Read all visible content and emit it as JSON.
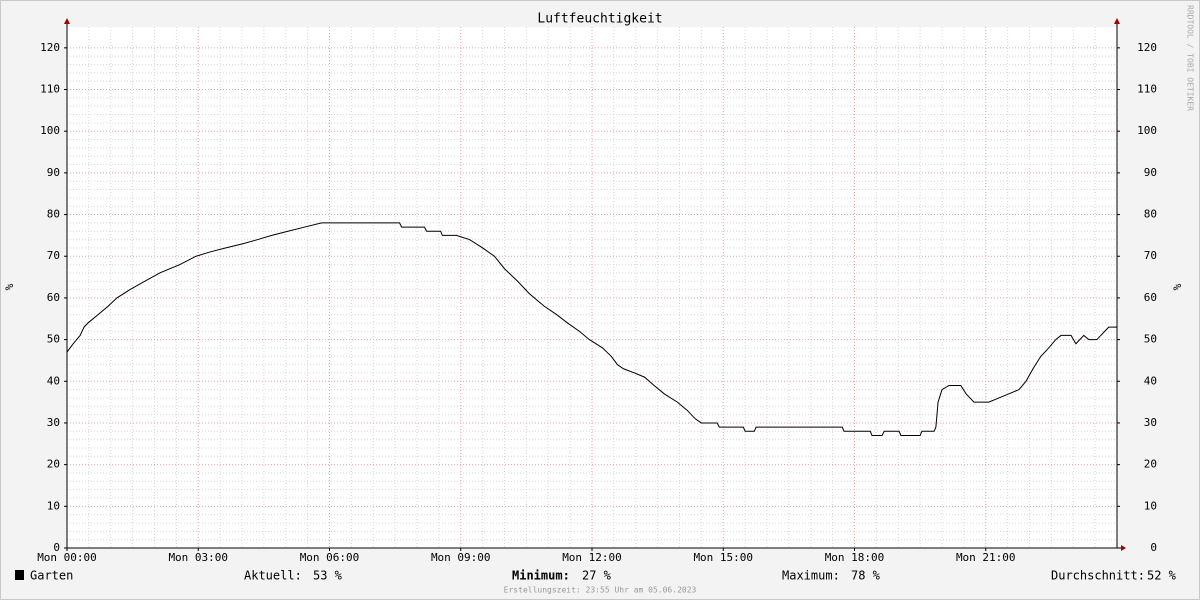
{
  "chart_data": {
    "type": "line",
    "title": "Luftfeuchtigkeit",
    "y_label": "%",
    "y2_label": "%",
    "side_text": "RRDTOOL / TOBI OETIKER",
    "footer": "Erstellungszeit: 23:55 Uhr am 05.06.2023",
    "grid": true,
    "xlim": [
      0,
      24
    ],
    "xticks": [
      {
        "value": 0,
        "label": "Mon 00:00"
      },
      {
        "value": 3,
        "label": "Mon 03:00"
      },
      {
        "value": 6,
        "label": "Mon 06:00"
      },
      {
        "value": 9,
        "label": "Mon 09:00"
      },
      {
        "value": 12,
        "label": "Mon 12:00"
      },
      {
        "value": 15,
        "label": "Mon 15:00"
      },
      {
        "value": 18,
        "label": "Mon 18:00"
      },
      {
        "value": 21,
        "label": "Mon 21:00"
      }
    ],
    "ylim": [
      0,
      125
    ],
    "yticks": [
      0,
      10,
      20,
      30,
      40,
      50,
      60,
      70,
      80,
      90,
      100,
      110,
      120
    ],
    "y2lim": [
      0,
      125
    ],
    "y2ticks": [
      0,
      10,
      20,
      30,
      40,
      50,
      60,
      70,
      80,
      90,
      100,
      110,
      120
    ],
    "x": [
      0,
      0.14,
      0.3,
      0.39,
      0.48,
      0.71,
      0.94,
      1.14,
      1.44,
      1.78,
      2.12,
      2.58,
      2.95,
      3.26,
      3.63,
      4.02,
      4.36,
      4.68,
      5.05,
      5.43,
      5.82,
      7.6,
      7.65,
      8.17,
      8.22,
      8.54,
      8.58,
      8.9,
      9.2,
      9.5,
      9.77,
      10.0,
      10.3,
      10.57,
      10.91,
      11.19,
      11.44,
      11.71,
      11.94,
      12.24,
      12.44,
      12.58,
      12.72,
      12.97,
      13.2,
      13.42,
      13.65,
      13.95,
      14.18,
      14.36,
      14.5,
      14.86,
      14.91,
      15.46,
      15.5,
      15.71,
      15.75,
      17.72,
      17.76,
      18.36,
      18.4,
      18.63,
      18.68,
      19.02,
      19.06,
      19.5,
      19.54,
      19.82,
      19.86,
      19.91,
      20.0,
      20.16,
      20.43,
      20.55,
      20.73,
      21.07,
      21.3,
      21.53,
      21.76,
      21.92,
      22.08,
      22.26,
      22.44,
      22.6,
      22.72,
      22.95,
      23.06,
      23.24,
      23.36,
      23.54,
      23.63,
      23.72,
      23.81,
      24
    ],
    "series": [
      {
        "name": "Garten",
        "color": "#000000",
        "values": [
          47,
          49,
          51,
          53,
          54,
          56,
          58,
          60,
          62,
          64,
          66,
          68,
          70,
          71,
          72,
          73,
          74,
          75,
          76,
          77,
          78,
          78,
          77,
          77,
          76,
          76,
          75,
          75,
          74,
          72,
          70,
          67,
          64,
          61,
          58,
          56,
          54,
          52,
          50,
          48,
          46,
          44,
          43,
          42,
          41,
          39,
          37,
          35,
          33,
          31,
          30,
          30,
          29,
          29,
          28,
          28,
          29,
          29,
          28,
          28,
          27,
          27,
          28,
          28,
          27,
          27,
          28,
          28,
          29,
          35,
          38,
          39,
          39,
          37,
          35,
          35,
          36,
          37,
          38,
          40,
          43,
          46,
          48,
          50,
          51,
          51,
          49,
          51,
          50,
          50,
          51,
          52,
          53,
          53
        ]
      }
    ],
    "stats": [
      {
        "label": "Aktuell:",
        "value": "53 %"
      },
      {
        "label": "Minimum:",
        "value": "27 %"
      },
      {
        "label": "Maximum:",
        "value": "78 %"
      },
      {
        "label": "Durchschnitt:",
        "value": "52 %"
      }
    ]
  }
}
